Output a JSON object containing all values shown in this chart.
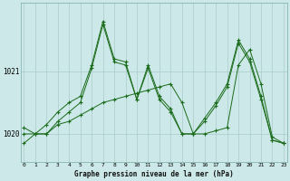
{
  "xlabel": "Graphe pression niveau de la mer (hPa)",
  "background_color": "#cce8e8",
  "grid_color": "#aacccc",
  "line_color": "#1a6b1a",
  "hours": [
    0,
    1,
    2,
    3,
    4,
    5,
    6,
    7,
    8,
    9,
    10,
    11,
    12,
    13,
    14,
    15,
    16,
    17,
    18,
    19,
    20,
    21,
    22,
    23
  ],
  "line1": [
    1020.1,
    1020.0,
    1020.0,
    1020.15,
    1020.2,
    1020.3,
    1020.4,
    1020.5,
    1020.55,
    1020.6,
    1020.65,
    1020.7,
    1020.75,
    1020.8,
    1020.5,
    1020.0,
    1020.0,
    1020.05,
    1020.1,
    1021.1,
    1021.35,
    1020.8,
    1019.95,
    1019.85
  ],
  "line2": [
    1020.0,
    1020.0,
    1020.15,
    1020.35,
    1020.5,
    1020.6,
    1021.1,
    1021.8,
    1021.2,
    1021.15,
    1020.55,
    1021.1,
    1020.6,
    1020.4,
    1020.0,
    1020.0,
    1020.25,
    1020.5,
    1020.8,
    1021.5,
    1021.2,
    1020.6,
    1019.9,
    1019.85
  ],
  "line3": [
    1019.85,
    1020.0,
    1020.0,
    1020.2,
    1020.35,
    1020.5,
    1021.05,
    1021.75,
    1021.15,
    1021.1,
    1020.55,
    1021.05,
    1020.55,
    1020.35,
    1020.0,
    1020.0,
    1020.2,
    1020.45,
    1020.75,
    1021.45,
    1021.15,
    1020.55,
    1019.9,
    1019.85
  ],
  "ylim": [
    1019.55,
    1022.1
  ],
  "yticks": [
    1020,
    1021
  ],
  "figsize": [
    3.2,
    2.0
  ],
  "dpi": 100
}
